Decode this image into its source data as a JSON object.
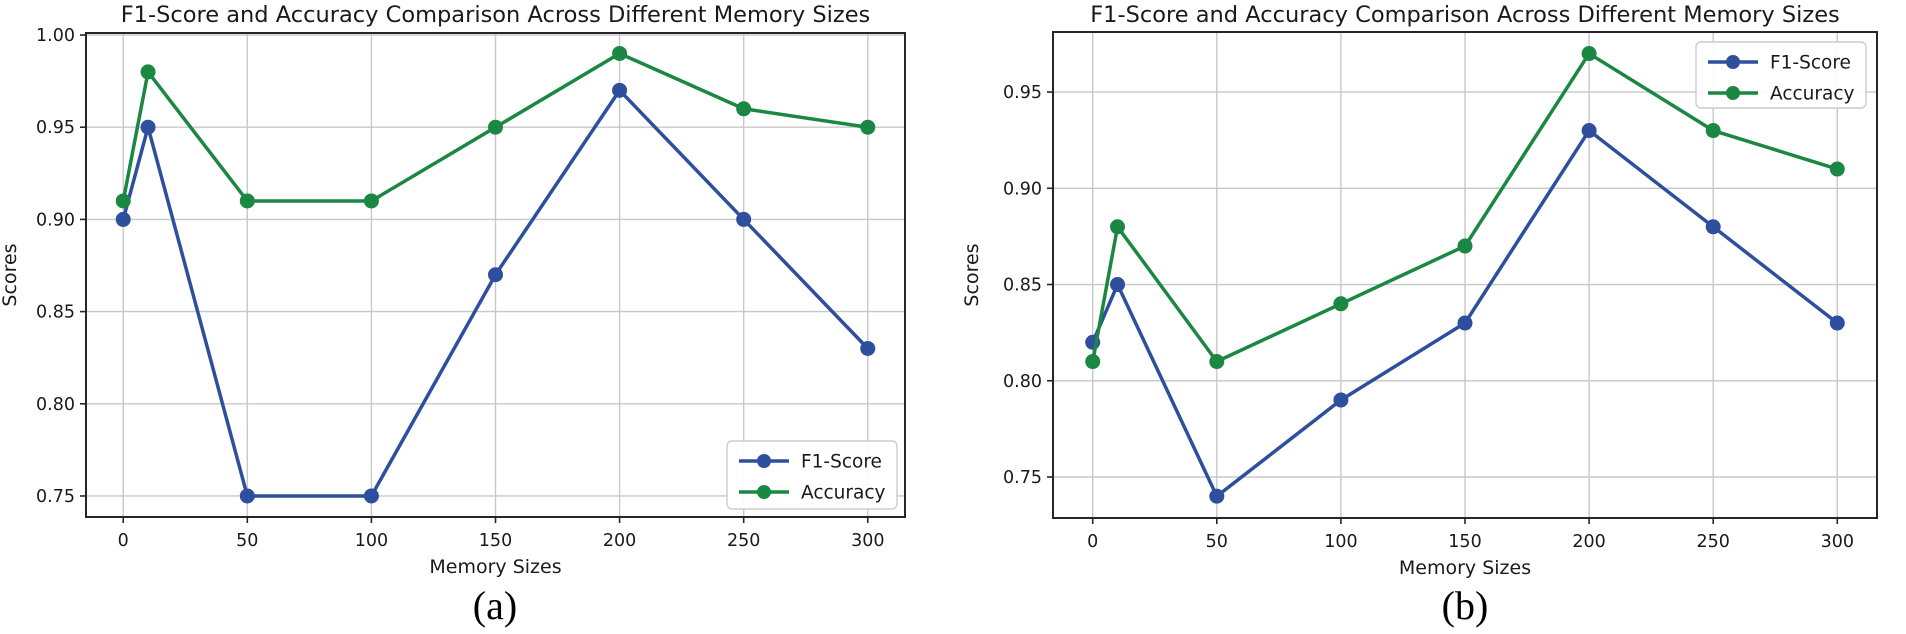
{
  "figure": {
    "background": "#ffffff",
    "text_color": "#1a1a1a",
    "grid_color": "#c8c8c8",
    "spine_color": "#262626"
  },
  "chart_data": [
    {
      "id": "a",
      "type": "line",
      "caption": "(a)",
      "title": "F1-Score and Accuracy Comparison Across Different Memory Sizes",
      "xlabel": "Memory Sizes",
      "ylabel": "Scores",
      "x": [
        0,
        10,
        50,
        100,
        150,
        200,
        250,
        300
      ],
      "series": [
        {
          "name": "F1-Score",
          "color": "#2d4f9e",
          "values": [
            0.9,
            0.95,
            0.75,
            0.75,
            0.87,
            0.97,
            0.9,
            0.83
          ]
        },
        {
          "name": "Accuracy",
          "color": "#1a8742",
          "values": [
            0.91,
            0.98,
            0.91,
            0.91,
            0.95,
            0.99,
            0.96,
            0.95
          ]
        }
      ],
      "xticks": [
        0,
        50,
        100,
        150,
        200,
        250,
        300
      ],
      "yticks": [
        0.75,
        0.8,
        0.85,
        0.9,
        0.95,
        1.0
      ],
      "xlim": [
        -15,
        315
      ],
      "ylim": [
        0.7386,
        1.0011
      ],
      "grid": true,
      "legend_position": "lower-right",
      "legend_labels": [
        "F1-Score",
        "Accuracy"
      ]
    },
    {
      "id": "b",
      "type": "line",
      "caption": "(b)",
      "title": "F1-Score and Accuracy Comparison Across Different Memory Sizes",
      "xlabel": "Memory Sizes",
      "ylabel": "Scores",
      "x": [
        0,
        10,
        50,
        100,
        150,
        200,
        250,
        300
      ],
      "series": [
        {
          "name": "F1-Score",
          "color": "#2d4f9e",
          "values": [
            0.82,
            0.85,
            0.74,
            0.79,
            0.83,
            0.93,
            0.88,
            0.83
          ]
        },
        {
          "name": "Accuracy",
          "color": "#1a8742",
          "values": [
            0.81,
            0.88,
            0.81,
            0.84,
            0.87,
            0.97,
            0.93,
            0.91
          ]
        }
      ],
      "xticks": [
        0,
        50,
        100,
        150,
        200,
        250,
        300
      ],
      "yticks": [
        0.75,
        0.8,
        0.85,
        0.9,
        0.95
      ],
      "xlim": [
        -16,
        316
      ],
      "ylim": [
        0.7287,
        0.9812
      ],
      "grid": true,
      "legend_position": "upper-right",
      "legend_labels": [
        "F1-Score",
        "Accuracy"
      ]
    }
  ]
}
